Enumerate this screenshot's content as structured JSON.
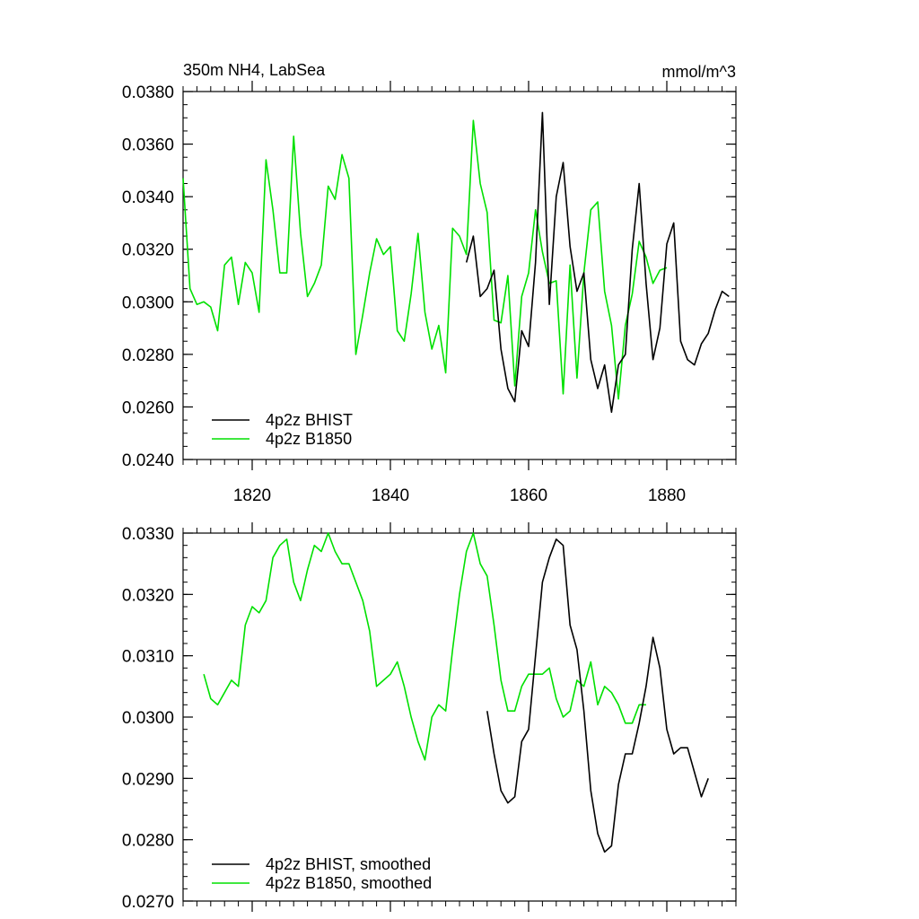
{
  "chart_data": [
    {
      "type": "line",
      "title_left": "350m NH4, LabSea",
      "title_right": "mmol/m^3",
      "xlim": [
        1810,
        1890
      ],
      "ylim": [
        0.024,
        0.038
      ],
      "y_ticks": [
        0.024,
        0.026,
        0.028,
        0.03,
        0.032,
        0.034,
        0.036,
        0.038
      ],
      "y_tick_labels": [
        "0.0240",
        "0.0260",
        "0.0280",
        "0.0300",
        "0.0320",
        "0.0340",
        "0.0360",
        "0.0380"
      ],
      "x_ticks": [
        1820,
        1840,
        1860,
        1880
      ],
      "x_tick_labels": [
        "1820",
        "1840",
        "1860",
        "1880"
      ],
      "legend_position": "bottom-left",
      "series": [
        {
          "name": "4p2z BHIST",
          "color": "#000000",
          "x": [
            1851,
            1852,
            1853,
            1854,
            1855,
            1856,
            1857,
            1858,
            1859,
            1860,
            1861,
            1862,
            1863,
            1864,
            1865,
            1866,
            1867,
            1868,
            1869,
            1870,
            1871,
            1872,
            1873,
            1874,
            1875,
            1876,
            1877,
            1878,
            1879,
            1880,
            1881,
            1882,
            1883,
            1884,
            1885,
            1886,
            1887,
            1888,
            1889
          ],
          "values": [
            0.0315,
            0.0325,
            0.0302,
            0.0305,
            0.0312,
            0.0282,
            0.0267,
            0.0262,
            0.0289,
            0.0283,
            0.0315,
            0.0372,
            0.0299,
            0.034,
            0.0353,
            0.0321,
            0.0304,
            0.0311,
            0.0278,
            0.0267,
            0.0276,
            0.0258,
            0.0276,
            0.028,
            0.032,
            0.0345,
            0.0307,
            0.0278,
            0.029,
            0.0322,
            0.033,
            0.0285,
            0.0278,
            0.0276,
            0.0284,
            0.0288,
            0.0297,
            0.0304,
            0.0302
          ]
        },
        {
          "name": "4p2z B1850",
          "color": "#00e000",
          "x": [
            1810,
            1811,
            1812,
            1813,
            1814,
            1815,
            1816,
            1817,
            1818,
            1819,
            1820,
            1821,
            1822,
            1823,
            1824,
            1825,
            1826,
            1827,
            1828,
            1829,
            1830,
            1831,
            1832,
            1833,
            1834,
            1835,
            1836,
            1837,
            1838,
            1839,
            1840,
            1841,
            1842,
            1843,
            1844,
            1845,
            1846,
            1847,
            1848,
            1849,
            1850,
            1851,
            1852,
            1853,
            1854,
            1855,
            1856,
            1857,
            1858,
            1859,
            1860,
            1861,
            1862,
            1863,
            1864,
            1865,
            1866,
            1867,
            1868,
            1869,
            1870,
            1871,
            1872,
            1873,
            1874,
            1875,
            1876,
            1877,
            1878,
            1879,
            1880
          ],
          "values": [
            0.0347,
            0.0305,
            0.0299,
            0.03,
            0.0298,
            0.0289,
            0.0314,
            0.0317,
            0.0299,
            0.0315,
            0.0311,
            0.0296,
            0.0354,
            0.0335,
            0.0311,
            0.0311,
            0.0363,
            0.0326,
            0.0302,
            0.0307,
            0.0314,
            0.0344,
            0.0339,
            0.0356,
            0.0347,
            0.028,
            0.0295,
            0.0311,
            0.0324,
            0.0318,
            0.0321,
            0.0289,
            0.0285,
            0.0303,
            0.0326,
            0.0296,
            0.0282,
            0.0291,
            0.0273,
            0.0328,
            0.0325,
            0.0318,
            0.0369,
            0.0345,
            0.0334,
            0.0293,
            0.0292,
            0.031,
            0.0268,
            0.0302,
            0.0311,
            0.0335,
            0.0319,
            0.0307,
            0.0308,
            0.0265,
            0.0314,
            0.0271,
            0.0311,
            0.0335,
            0.0338,
            0.0304,
            0.0291,
            0.0263,
            0.0291,
            0.0303,
            0.0323,
            0.0317,
            0.0307,
            0.0312,
            0.0313
          ]
        }
      ]
    },
    {
      "type": "line",
      "xlim": [
        1810,
        1890
      ],
      "ylim": [
        0.027,
        0.033
      ],
      "y_ticks": [
        0.027,
        0.028,
        0.029,
        0.03,
        0.031,
        0.032,
        0.033
      ],
      "y_tick_labels": [
        "0.0270",
        "0.0280",
        "0.0290",
        "0.0300",
        "0.0310",
        "0.0320",
        "0.0330"
      ],
      "x_ticks": [
        1820,
        1840,
        1860,
        1880
      ],
      "legend_position": "bottom-left",
      "series": [
        {
          "name": "4p2z BHIST, smoothed",
          "color": "#000000",
          "x": [
            1854,
            1855,
            1856,
            1857,
            1858,
            1859,
            1860,
            1861,
            1862,
            1863,
            1864,
            1865,
            1866,
            1867,
            1868,
            1869,
            1870,
            1871,
            1872,
            1873,
            1874,
            1875,
            1876,
            1877,
            1878,
            1879,
            1880,
            1881,
            1882,
            1883,
            1884,
            1885,
            1886
          ],
          "values": [
            0.0301,
            0.0294,
            0.0288,
            0.0286,
            0.0287,
            0.0296,
            0.0298,
            0.031,
            0.0322,
            0.0326,
            0.0329,
            0.0328,
            0.0315,
            0.0311,
            0.0301,
            0.0288,
            0.0281,
            0.0278,
            0.0279,
            0.0289,
            0.0294,
            0.0294,
            0.0299,
            0.0305,
            0.0313,
            0.0308,
            0.0298,
            0.0294,
            0.0295,
            0.0295,
            0.0291,
            0.0287,
            0.029
          ]
        },
        {
          "name": "4p2z B1850, smoothed",
          "color": "#00e000",
          "x": [
            1813,
            1814,
            1815,
            1816,
            1817,
            1818,
            1819,
            1820,
            1821,
            1822,
            1823,
            1824,
            1825,
            1826,
            1827,
            1828,
            1829,
            1830,
            1831,
            1832,
            1833,
            1834,
            1835,
            1836,
            1837,
            1838,
            1839,
            1840,
            1841,
            1842,
            1843,
            1844,
            1845,
            1846,
            1847,
            1848,
            1849,
            1850,
            1851,
            1852,
            1853,
            1854,
            1855,
            1856,
            1857,
            1858,
            1859,
            1860,
            1861,
            1862,
            1863,
            1864,
            1865,
            1866,
            1867,
            1868,
            1869,
            1870,
            1871,
            1872,
            1873,
            1874,
            1875,
            1876,
            1877
          ],
          "values": [
            0.0307,
            0.0303,
            0.0302,
            0.0304,
            0.0306,
            0.0305,
            0.0315,
            0.0318,
            0.0317,
            0.0319,
            0.0326,
            0.0328,
            0.0329,
            0.0322,
            0.0319,
            0.0324,
            0.0328,
            0.0327,
            0.033,
            0.0327,
            0.0325,
            0.0325,
            0.0322,
            0.0319,
            0.0314,
            0.0305,
            0.0306,
            0.0307,
            0.0309,
            0.0305,
            0.03,
            0.0296,
            0.0293,
            0.03,
            0.0302,
            0.0301,
            0.0311,
            0.032,
            0.0327,
            0.033,
            0.0325,
            0.0323,
            0.0315,
            0.0306,
            0.0301,
            0.0301,
            0.0305,
            0.0307,
            0.0307,
            0.0307,
            0.0308,
            0.0303,
            0.03,
            0.0301,
            0.0306,
            0.0305,
            0.0309,
            0.0302,
            0.0305,
            0.0304,
            0.0302,
            0.0299,
            0.0299,
            0.0302,
            0.0302
          ]
        }
      ]
    }
  ]
}
